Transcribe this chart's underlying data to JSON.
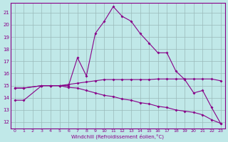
{
  "xlabel": "Windchill (Refroidissement éolien,°C)",
  "xlim": [
    -0.5,
    23.5
  ],
  "ylim": [
    11.5,
    21.8
  ],
  "yticks": [
    12,
    13,
    14,
    15,
    16,
    17,
    18,
    19,
    20,
    21
  ],
  "xticks": [
    0,
    1,
    2,
    3,
    4,
    5,
    6,
    7,
    8,
    9,
    10,
    11,
    12,
    13,
    14,
    15,
    16,
    17,
    18,
    19,
    20,
    21,
    22,
    23
  ],
  "bg_color": "#c0e8e8",
  "grid_color": "#9ababa",
  "line_color": "#880088",
  "line1_x": [
    0,
    1,
    3,
    4,
    5,
    6,
    7,
    8,
    9,
    10,
    11,
    12,
    13,
    14,
    15,
    16,
    17,
    18,
    19,
    20,
    21,
    22,
    23
  ],
  "line1_y": [
    13.8,
    13.8,
    15.0,
    15.0,
    15.0,
    15.0,
    17.3,
    15.8,
    19.3,
    20.3,
    21.5,
    20.7,
    20.3,
    19.3,
    18.5,
    17.7,
    17.7,
    16.2,
    15.5,
    14.4,
    14.6,
    13.2,
    11.9
  ],
  "line2_x": [
    0,
    1,
    3,
    4,
    5,
    6,
    7,
    8,
    9,
    10,
    11,
    12,
    13,
    14,
    15,
    16,
    17,
    18,
    19,
    20,
    21,
    22,
    23
  ],
  "line2_y": [
    14.8,
    14.8,
    15.0,
    15.0,
    15.0,
    15.1,
    15.2,
    15.3,
    15.4,
    15.5,
    15.5,
    15.5,
    15.5,
    15.5,
    15.5,
    15.55,
    15.55,
    15.55,
    15.55,
    15.55,
    15.55,
    15.55,
    15.4
  ],
  "line3_x": [
    0,
    1,
    3,
    4,
    5,
    6,
    7,
    8,
    9,
    10,
    11,
    12,
    13,
    14,
    15,
    16,
    17,
    18,
    19,
    20,
    21,
    22,
    23
  ],
  "line3_y": [
    14.8,
    14.8,
    15.0,
    15.0,
    15.0,
    14.85,
    14.8,
    14.6,
    14.4,
    14.2,
    14.1,
    13.9,
    13.8,
    13.6,
    13.5,
    13.3,
    13.2,
    13.0,
    12.9,
    12.8,
    12.6,
    12.2,
    11.9
  ]
}
